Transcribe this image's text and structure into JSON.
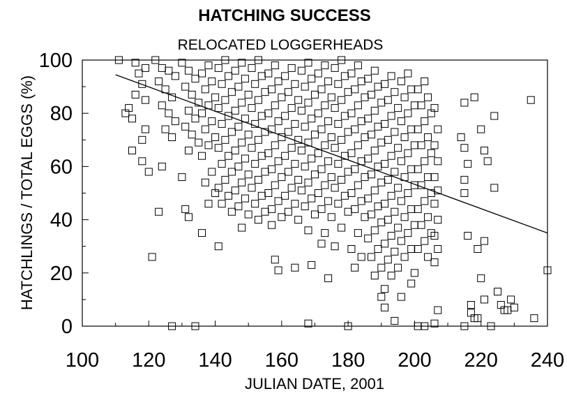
{
  "chart_data": {
    "type": "scatter",
    "title": "HATCHING SUCCESS",
    "subtitle": "RELOCATED LOGGERHEADS",
    "xlabel": "JULIAN DATE, 2001",
    "ylabel": "HATCHLINGS / TOTAL EGGS (%)",
    "xlim": [
      100,
      240
    ],
    "ylim": [
      0,
      100
    ],
    "xticks": [
      100,
      120,
      140,
      160,
      180,
      200,
      220,
      240
    ],
    "yticks": [
      0,
      20,
      40,
      60,
      80,
      100
    ],
    "grid": false,
    "marker": "open-square",
    "trendline": {
      "x": [
        110,
        240
      ],
      "y": [
        94.5,
        35
      ]
    },
    "points": [
      [
        111,
        100
      ],
      [
        116,
        99
      ],
      [
        117,
        95
      ],
      [
        118,
        91
      ],
      [
        119,
        97
      ],
      [
        119,
        85
      ],
      [
        116,
        87
      ],
      [
        114,
        82
      ],
      [
        113,
        80
      ],
      [
        115,
        78
      ],
      [
        119,
        74
      ],
      [
        118,
        70
      ],
      [
        115,
        66
      ],
      [
        118,
        62
      ],
      [
        120,
        58
      ],
      [
        121,
        26
      ],
      [
        122,
        100
      ],
      [
        124,
        97
      ],
      [
        126,
        96
      ],
      [
        128,
        94
      ],
      [
        123,
        92
      ],
      [
        125,
        89
      ],
      [
        127,
        86
      ],
      [
        124,
        83
      ],
      [
        126,
        80
      ],
      [
        128,
        77
      ],
      [
        125,
        74
      ],
      [
        127,
        71
      ],
      [
        124,
        60
      ],
      [
        123,
        43
      ],
      [
        127,
        0
      ],
      [
        130,
        99
      ],
      [
        132,
        96
      ],
      [
        134,
        93
      ],
      [
        131,
        90
      ],
      [
        133,
        87
      ],
      [
        135,
        84
      ],
      [
        132,
        81
      ],
      [
        134,
        78
      ],
      [
        131,
        75
      ],
      [
        133,
        72
      ],
      [
        135,
        69
      ],
      [
        132,
        66
      ],
      [
        130,
        56
      ],
      [
        131,
        44
      ],
      [
        132,
        41
      ],
      [
        134,
        0
      ],
      [
        138,
        98
      ],
      [
        136,
        95
      ],
      [
        139,
        92
      ],
      [
        137,
        89
      ],
      [
        140,
        86
      ],
      [
        138,
        83
      ],
      [
        136,
        80
      ],
      [
        139,
        77
      ],
      [
        137,
        74
      ],
      [
        140,
        71
      ],
      [
        138,
        68
      ],
      [
        136,
        64
      ],
      [
        139,
        58
      ],
      [
        137,
        54
      ],
      [
        140,
        50
      ],
      [
        136,
        35
      ],
      [
        138,
        46
      ],
      [
        143,
        100
      ],
      [
        141,
        97
      ],
      [
        144,
        94
      ],
      [
        142,
        91
      ],
      [
        145,
        88
      ],
      [
        143,
        85
      ],
      [
        141,
        82
      ],
      [
        144,
        79
      ],
      [
        142,
        76
      ],
      [
        145,
        73
      ],
      [
        143,
        70
      ],
      [
        141,
        67
      ],
      [
        144,
        64
      ],
      [
        142,
        61
      ],
      [
        145,
        58
      ],
      [
        143,
        55
      ],
      [
        141,
        52
      ],
      [
        144,
        49
      ],
      [
        142,
        46
      ],
      [
        145,
        43
      ],
      [
        141,
        30
      ],
      [
        148,
        99
      ],
      [
        146,
        96
      ],
      [
        149,
        93
      ],
      [
        147,
        90
      ],
      [
        150,
        87
      ],
      [
        148,
        84
      ],
      [
        146,
        81
      ],
      [
        149,
        78
      ],
      [
        147,
        75
      ],
      [
        150,
        72
      ],
      [
        148,
        69
      ],
      [
        146,
        66
      ],
      [
        149,
        63
      ],
      [
        147,
        60
      ],
      [
        150,
        57
      ],
      [
        148,
        54
      ],
      [
        146,
        51
      ],
      [
        149,
        48
      ],
      [
        147,
        45
      ],
      [
        150,
        42
      ],
      [
        148,
        37
      ],
      [
        153,
        100
      ],
      [
        151,
        97
      ],
      [
        154,
        94
      ],
      [
        152,
        91
      ],
      [
        155,
        88
      ],
      [
        153,
        85
      ],
      [
        151,
        82
      ],
      [
        154,
        79
      ],
      [
        152,
        76
      ],
      [
        155,
        73
      ],
      [
        153,
        70
      ],
      [
        151,
        67
      ],
      [
        154,
        64
      ],
      [
        152,
        61
      ],
      [
        155,
        58
      ],
      [
        153,
        55
      ],
      [
        151,
        52
      ],
      [
        154,
        49
      ],
      [
        152,
        46
      ],
      [
        155,
        43
      ],
      [
        153,
        40
      ],
      [
        158,
        98
      ],
      [
        156,
        95
      ],
      [
        159,
        92
      ],
      [
        157,
        89
      ],
      [
        160,
        86
      ],
      [
        158,
        83
      ],
      [
        156,
        80
      ],
      [
        159,
        77
      ],
      [
        157,
        74
      ],
      [
        160,
        71
      ],
      [
        158,
        68
      ],
      [
        156,
        65
      ],
      [
        159,
        62
      ],
      [
        157,
        59
      ],
      [
        160,
        56
      ],
      [
        158,
        53
      ],
      [
        156,
        50
      ],
      [
        159,
        47
      ],
      [
        157,
        44
      ],
      [
        160,
        41
      ],
      [
        158,
        25
      ],
      [
        159,
        21
      ],
      [
        157,
        38
      ],
      [
        163,
        97
      ],
      [
        161,
        94
      ],
      [
        164,
        91
      ],
      [
        162,
        88
      ],
      [
        165,
        85
      ],
      [
        163,
        82
      ],
      [
        161,
        79
      ],
      [
        164,
        76
      ],
      [
        162,
        73
      ],
      [
        165,
        70
      ],
      [
        163,
        67
      ],
      [
        161,
        64
      ],
      [
        164,
        61
      ],
      [
        162,
        58
      ],
      [
        165,
        55
      ],
      [
        163,
        52
      ],
      [
        161,
        49
      ],
      [
        164,
        46
      ],
      [
        162,
        43
      ],
      [
        165,
        40
      ],
      [
        164,
        22
      ],
      [
        168,
        99
      ],
      [
        166,
        96
      ],
      [
        169,
        93
      ],
      [
        167,
        90
      ],
      [
        170,
        87
      ],
      [
        168,
        84
      ],
      [
        166,
        81
      ],
      [
        169,
        78
      ],
      [
        167,
        75
      ],
      [
        170,
        72
      ],
      [
        168,
        69
      ],
      [
        166,
        66
      ],
      [
        169,
        63
      ],
      [
        167,
        60
      ],
      [
        170,
        57
      ],
      [
        168,
        54
      ],
      [
        166,
        51
      ],
      [
        169,
        48
      ],
      [
        167,
        45
      ],
      [
        170,
        42
      ],
      [
        168,
        36
      ],
      [
        169,
        23
      ],
      [
        168,
        1
      ],
      [
        173,
        98
      ],
      [
        171,
        95
      ],
      [
        174,
        92
      ],
      [
        172,
        89
      ],
      [
        175,
        86
      ],
      [
        173,
        83
      ],
      [
        171,
        80
      ],
      [
        174,
        77
      ],
      [
        172,
        74
      ],
      [
        175,
        71
      ],
      [
        173,
        68
      ],
      [
        171,
        65
      ],
      [
        174,
        62
      ],
      [
        172,
        59
      ],
      [
        175,
        56
      ],
      [
        173,
        53
      ],
      [
        171,
        50
      ],
      [
        174,
        47
      ],
      [
        172,
        44
      ],
      [
        175,
        41
      ],
      [
        173,
        35
      ],
      [
        172,
        31
      ],
      [
        174,
        18
      ],
      [
        178,
        100
      ],
      [
        176,
        97
      ],
      [
        179,
        94
      ],
      [
        177,
        91
      ],
      [
        180,
        88
      ],
      [
        178,
        85
      ],
      [
        176,
        82
      ],
      [
        179,
        79
      ],
      [
        177,
        76
      ],
      [
        180,
        73
      ],
      [
        178,
        70
      ],
      [
        176,
        67
      ],
      [
        179,
        64
      ],
      [
        177,
        61
      ],
      [
        180,
        58
      ],
      [
        178,
        55
      ],
      [
        176,
        52
      ],
      [
        179,
        49
      ],
      [
        177,
        46
      ],
      [
        180,
        43
      ],
      [
        178,
        37
      ],
      [
        176,
        30
      ],
      [
        180,
        0
      ],
      [
        183,
        98
      ],
      [
        181,
        95
      ],
      [
        184,
        92
      ],
      [
        182,
        89
      ],
      [
        185,
        86
      ],
      [
        183,
        83
      ],
      [
        181,
        80
      ],
      [
        184,
        77
      ],
      [
        182,
        74
      ],
      [
        185,
        71
      ],
      [
        183,
        68
      ],
      [
        181,
        65
      ],
      [
        184,
        62
      ],
      [
        182,
        59
      ],
      [
        185,
        56
      ],
      [
        183,
        53
      ],
      [
        181,
        50
      ],
      [
        184,
        47
      ],
      [
        182,
        44
      ],
      [
        185,
        41
      ],
      [
        183,
        35
      ],
      [
        181,
        29
      ],
      [
        184,
        26
      ],
      [
        182,
        22
      ],
      [
        188,
        96
      ],
      [
        186,
        93
      ],
      [
        189,
        90
      ],
      [
        187,
        87
      ],
      [
        190,
        84
      ],
      [
        188,
        81
      ],
      [
        186,
        78
      ],
      [
        189,
        75
      ],
      [
        187,
        72
      ],
      [
        190,
        69
      ],
      [
        188,
        66
      ],
      [
        186,
        63
      ],
      [
        189,
        60
      ],
      [
        187,
        57
      ],
      [
        190,
        54
      ],
      [
        188,
        51
      ],
      [
        186,
        48
      ],
      [
        189,
        45
      ],
      [
        187,
        42
      ],
      [
        190,
        39
      ],
      [
        188,
        36
      ],
      [
        186,
        33
      ],
      [
        189,
        29
      ],
      [
        187,
        26
      ],
      [
        190,
        22
      ],
      [
        188,
        19
      ],
      [
        190,
        11
      ],
      [
        191,
        7
      ],
      [
        193,
        94
      ],
      [
        191,
        91
      ],
      [
        194,
        88
      ],
      [
        192,
        85
      ],
      [
        195,
        82
      ],
      [
        193,
        79
      ],
      [
        191,
        76
      ],
      [
        194,
        73
      ],
      [
        192,
        70
      ],
      [
        195,
        67
      ],
      [
        193,
        64
      ],
      [
        191,
        61
      ],
      [
        194,
        58
      ],
      [
        192,
        55
      ],
      [
        195,
        52
      ],
      [
        193,
        49
      ],
      [
        191,
        46
      ],
      [
        194,
        43
      ],
      [
        192,
        40
      ],
      [
        195,
        37
      ],
      [
        193,
        34
      ],
      [
        191,
        31
      ],
      [
        194,
        28
      ],
      [
        192,
        25
      ],
      [
        195,
        22
      ],
      [
        193,
        19
      ],
      [
        191,
        14
      ],
      [
        196,
        11
      ],
      [
        194,
        2
      ],
      [
        198,
        95
      ],
      [
        196,
        92
      ],
      [
        199,
        89
      ],
      [
        197,
        86
      ],
      [
        200,
        83
      ],
      [
        198,
        80
      ],
      [
        196,
        77
      ],
      [
        199,
        74
      ],
      [
        197,
        71
      ],
      [
        200,
        68
      ],
      [
        198,
        65
      ],
      [
        196,
        62
      ],
      [
        199,
        59
      ],
      [
        197,
        56
      ],
      [
        200,
        53
      ],
      [
        198,
        50
      ],
      [
        196,
        47
      ],
      [
        199,
        44
      ],
      [
        197,
        41
      ],
      [
        200,
        38
      ],
      [
        198,
        35
      ],
      [
        196,
        32
      ],
      [
        199,
        29
      ],
      [
        197,
        26
      ],
      [
        200,
        20
      ],
      [
        199,
        16
      ],
      [
        201,
        0
      ],
      [
        203,
        92
      ],
      [
        201,
        89
      ],
      [
        204,
        86
      ],
      [
        202,
        83
      ],
      [
        205,
        80
      ],
      [
        203,
        77
      ],
      [
        201,
        74
      ],
      [
        204,
        71
      ],
      [
        202,
        68
      ],
      [
        205,
        65
      ],
      [
        203,
        62
      ],
      [
        201,
        59
      ],
      [
        204,
        56
      ],
      [
        202,
        53
      ],
      [
        205,
        50
      ],
      [
        203,
        47
      ],
      [
        201,
        44
      ],
      [
        204,
        41
      ],
      [
        202,
        38
      ],
      [
        205,
        35
      ],
      [
        203,
        32
      ],
      [
        201,
        29
      ],
      [
        204,
        26
      ],
      [
        206,
        82
      ],
      [
        207,
        74
      ],
      [
        206,
        68
      ],
      [
        207,
        62
      ],
      [
        206,
        56
      ],
      [
        207,
        51
      ],
      [
        206,
        46
      ],
      [
        207,
        40
      ],
      [
        206,
        34
      ],
      [
        207,
        29
      ],
      [
        206,
        24
      ],
      [
        207,
        6
      ],
      [
        206,
        1
      ],
      [
        203,
        0
      ],
      [
        215,
        84
      ],
      [
        214,
        71
      ],
      [
        215,
        67
      ],
      [
        216,
        61
      ],
      [
        215,
        55
      ],
      [
        215,
        50
      ],
      [
        216,
        34
      ],
      [
        215,
        0
      ],
      [
        218,
        86
      ],
      [
        220,
        74
      ],
      [
        221,
        66
      ],
      [
        219,
        29
      ],
      [
        220,
        18
      ],
      [
        221,
        10
      ],
      [
        217,
        8
      ],
      [
        217,
        5
      ],
      [
        218,
        3
      ],
      [
        219,
        3
      ],
      [
        222,
        62
      ],
      [
        221,
        32
      ],
      [
        224,
        79
      ],
      [
        224,
        52
      ],
      [
        225,
        13
      ],
      [
        223,
        0
      ],
      [
        226,
        8
      ],
      [
        227,
        6
      ],
      [
        228,
        6
      ],
      [
        229,
        10
      ],
      [
        230,
        7
      ],
      [
        235,
        85
      ],
      [
        236,
        3
      ],
      [
        240,
        21
      ]
    ]
  }
}
